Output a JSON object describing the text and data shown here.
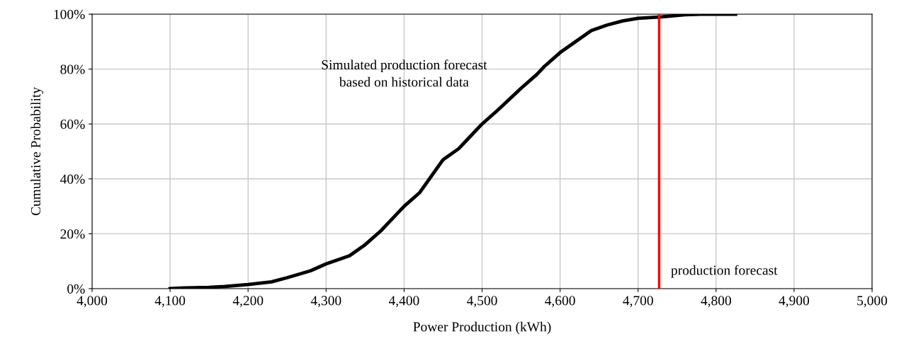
{
  "chart_data": {
    "type": "line",
    "xlabel": "Power Production (kWh)",
    "ylabel": "Cumulative Probability",
    "x": [
      4100,
      4120,
      4150,
      4170,
      4200,
      4230,
      4250,
      4280,
      4300,
      4330,
      4350,
      4370,
      4380,
      4400,
      4420,
      4440,
      4450,
      4470,
      4480,
      4500,
      4520,
      4550,
      4570,
      4580,
      4600,
      4620,
      4640,
      4660,
      4680,
      4700,
      4730,
      4760,
      4780,
      4825
    ],
    "series": [
      {
        "color": "#000000",
        "values": [
          0,
          0.3,
          0.5,
          0.8,
          1.5,
          2.5,
          4,
          6.5,
          9,
          12,
          16,
          21,
          24,
          30,
          35,
          43,
          47,
          51,
          54,
          60,
          65,
          73,
          78,
          81,
          86,
          90,
          94,
          96,
          97.5,
          98.5,
          99,
          99.8,
          100,
          100
        ]
      }
    ],
    "xlim": [
      4000,
      5000
    ],
    "xticks": [
      {
        "value": 4000,
        "label": "4,000"
      },
      {
        "value": 4100,
        "label": "4,100"
      },
      {
        "value": 4200,
        "label": "4,200"
      },
      {
        "value": 4300,
        "label": "4,300"
      },
      {
        "value": 4400,
        "label": "4,400"
      },
      {
        "value": 4500,
        "label": "4,500"
      },
      {
        "value": 4600,
        "label": "4,600"
      },
      {
        "value": 4700,
        "label": "4,700"
      },
      {
        "value": 4800,
        "label": "4,800"
      },
      {
        "value": 4900,
        "label": "4,900"
      },
      {
        "value": 5000,
        "label": "5,000"
      }
    ],
    "ylim": [
      0,
      100
    ],
    "yticks": [
      {
        "value": 0,
        "label": "0%"
      },
      {
        "value": 20,
        "label": "20%"
      },
      {
        "value": 40,
        "label": "40%"
      },
      {
        "value": 60,
        "label": "60%"
      },
      {
        "value": 80,
        "label": "80%"
      },
      {
        "value": 100,
        "label": "100%"
      }
    ],
    "grid": true,
    "marker": "none",
    "line_style": "solid",
    "ref_lines": [
      {
        "axis": "x",
        "value": 4727,
        "label": "production forecast",
        "color": "#ff0000"
      }
    ],
    "annotations": [
      "Simulated production forecast\nbased on historical data"
    ]
  }
}
